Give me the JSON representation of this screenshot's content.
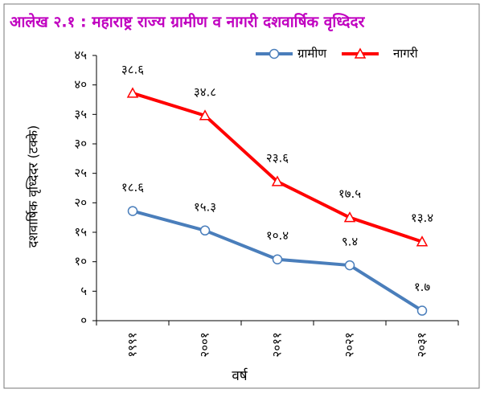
{
  "chart_data": {
    "type": "line",
    "title": "आलेख २.१ : महाराष्ट्र राज्य ग्रामीण व नागरी दशवार्षिक वृध्दिदर",
    "xlabel": "वर्ष",
    "ylabel": "दशवार्षिक वृध्दिदर (टक्के)",
    "categories": [
      "१९९१",
      "२००१",
      "२०११",
      "२०२१",
      "२०३१"
    ],
    "series": [
      {
        "name": "ग्रामीण",
        "color": "#4a7ebb",
        "marker": "circle",
        "values": [
          18.6,
          15.3,
          10.4,
          9.4,
          1.7
        ],
        "value_labels": [
          "१८.६",
          "१५.३",
          "१०.४",
          "९.४",
          "१.७"
        ]
      },
      {
        "name": "नागरी",
        "color": "#ff0000",
        "marker": "triangle",
        "values": [
          38.6,
          34.8,
          23.6,
          17.5,
          13.4
        ],
        "value_labels": [
          "३८.६",
          "३४.८",
          "२३.६",
          "१७.५",
          "१३.४"
        ]
      }
    ],
    "ylim": [
      0,
      45
    ],
    "yticks": [
      {
        "value": 0,
        "label": "०"
      },
      {
        "value": 5,
        "label": "५"
      },
      {
        "value": 10,
        "label": "१०"
      },
      {
        "value": 15,
        "label": "१५"
      },
      {
        "value": 20,
        "label": "२०"
      },
      {
        "value": 25,
        "label": "२५"
      },
      {
        "value": 30,
        "label": "३०"
      },
      {
        "value": 35,
        "label": "३५"
      },
      {
        "value": 40,
        "label": "४०"
      },
      {
        "value": 45,
        "label": "४५"
      }
    ],
    "title_color": "#c000c0"
  }
}
